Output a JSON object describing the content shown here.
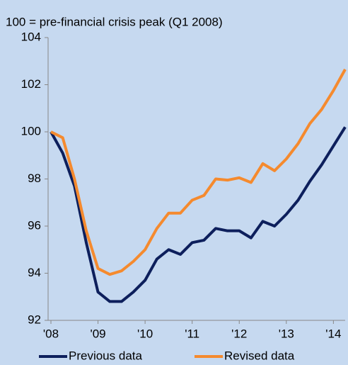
{
  "chart_data": {
    "type": "line",
    "subtitle": "100 = pre-financial crisis peak (Q1 2008)",
    "categories": [
      "'08",
      null,
      null,
      null,
      "'09",
      null,
      null,
      null,
      "'10",
      null,
      null,
      null,
      "'11",
      null,
      null,
      null,
      "'12",
      null,
      null,
      null,
      "'13",
      null,
      null,
      null,
      "'14",
      null
    ],
    "series": [
      {
        "name": "Previous data",
        "color": "#0d1f5c",
        "values": [
          100,
          99.1,
          97.7,
          95.3,
          93.2,
          92.8,
          92.8,
          93.2,
          93.7,
          94.6,
          95.0,
          94.8,
          95.3,
          95.4,
          95.9,
          95.8,
          95.8,
          95.5,
          96.2,
          96.0,
          96.5,
          97.1,
          97.9,
          98.6,
          99.4,
          100.2
        ]
      },
      {
        "name": "Revised data",
        "color": "#f58a2e",
        "values": [
          100,
          99.75,
          98.0,
          95.8,
          94.2,
          93.95,
          94.1,
          94.5,
          95.0,
          95.9,
          96.55,
          96.55,
          97.1,
          97.3,
          98.0,
          97.95,
          98.05,
          97.85,
          98.65,
          98.35,
          98.85,
          99.5,
          100.35,
          100.95,
          101.75,
          102.65
        ]
      }
    ],
    "ylim": [
      92,
      104
    ],
    "yticks": [
      92,
      94,
      96,
      98,
      100,
      102,
      104
    ],
    "legend": "bottom"
  }
}
